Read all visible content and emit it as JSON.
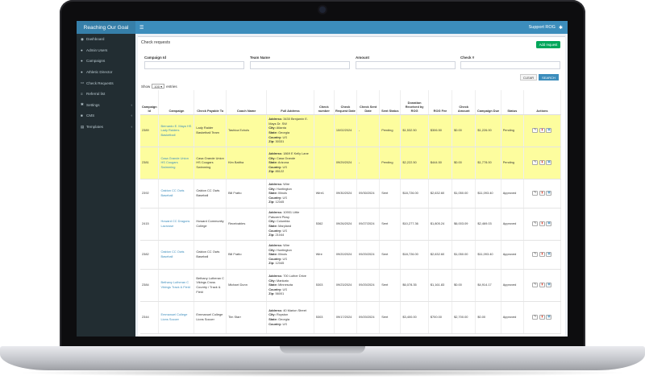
{
  "app": {
    "brand": "Reaching Our Goal",
    "support_label": "Support ROG"
  },
  "sidebar": {
    "items": [
      {
        "label": "Dashboard",
        "icon": "dashboard-icon",
        "glyph": "◉",
        "chevron": false
      },
      {
        "label": "Admin Users",
        "icon": "user-icon",
        "glyph": "●",
        "chevron": false
      },
      {
        "label": "Campaigns",
        "icon": "users-icon",
        "glyph": "●",
        "chevron": false
      },
      {
        "label": "Athletic Director",
        "icon": "user-icon",
        "glyph": "●",
        "chevron": false
      },
      {
        "label": "Check Requests",
        "icon": "money-icon",
        "glyph": "▭",
        "chevron": false
      },
      {
        "label": "Referral list",
        "icon": "list-icon",
        "glyph": "≡",
        "chevron": false
      },
      {
        "label": "Settings",
        "icon": "gear-icon",
        "glyph": "✱",
        "chevron": true
      },
      {
        "label": "CMS",
        "icon": "cms-icon",
        "glyph": "■",
        "chevron": true
      },
      {
        "label": "Templates",
        "icon": "template-icon",
        "glyph": "▤",
        "chevron": true
      }
    ]
  },
  "page": {
    "title": "Check requests",
    "add_button": "Add request",
    "filters": {
      "campaign_id": "Campaign Id",
      "team_name": "Team Name",
      "amount": "Amount",
      "check_no": "Check #"
    },
    "clear_button": "CLEAR",
    "search_button": "SEARCH",
    "show_label": "Show",
    "show_value": "100",
    "entries_label": "entries"
  },
  "table": {
    "headers": [
      "Campaign Id",
      "Campaign",
      "Check Payable To",
      "Coach Name",
      "Full Address",
      "Check number",
      "Check Request Date",
      "Check Sent Date",
      "Sent Status",
      "Donation Received by ROG",
      "ROG Fee",
      "Check Amount",
      "Campaign Due",
      "Status",
      "Actions"
    ],
    "rows": [
      {
        "highlight": true,
        "id": "2389",
        "campaign": "Bernardo E. Maya HS Lady Raiders Basketball",
        "payable": "Lady Raider Basketball Team",
        "coach": "Tashica Echols",
        "address": [
          [
            "Address:",
            "3430 Benjamin E. Mays Dr. SW"
          ],
          [
            "City:",
            "Atlanta"
          ],
          [
            "State:",
            "Georgia"
          ],
          [
            "Country:",
            "US"
          ],
          [
            "Zip:",
            "30331"
          ]
        ],
        "check_no": "",
        "req_date": "10/02/2024",
        "sent_date": "-",
        "sent_status": "Pending",
        "donation": "$1,532.50",
        "fee": "$306.50",
        "amount": "$0.00",
        "due": "$1,226.00",
        "status": "Pending"
      },
      {
        "highlight": true,
        "id": "2381",
        "campaign": "Casa Grande Union HS Cougars Swimming",
        "payable": "Casa Grande Union HS Cougars Swimming",
        "coach": "Kim Battha",
        "address": [
          [
            "Address:",
            "1869 E Kelly Lane"
          ],
          [
            "City:",
            "Casa Grande"
          ],
          [
            "State:",
            "Arizona"
          ],
          [
            "Country:",
            "US"
          ],
          [
            "Zip:",
            "85122"
          ]
        ],
        "check_no": "",
        "req_date": "09/29/2024",
        "sent_date": "-",
        "sent_status": "Pending",
        "donation": "$2,222.50",
        "fee": "$444.50",
        "amount": "$0.00",
        "due": "$1,778.00",
        "status": "Pending"
      },
      {
        "highlight": false,
        "id": "2392",
        "campaign": "Oakton CC Owls Baseball",
        "payable": "Oakton CC Owls Baseball",
        "coach": "Bill Fratto",
        "address": [
          [
            "Address:",
            "Wire"
          ],
          [
            "City:",
            "Huntington"
          ],
          [
            "State:",
            "Illinois"
          ],
          [
            "Country:",
            "US"
          ],
          [
            "Zip:",
            "12345"
          ]
        ],
        "check_no": "Wire1",
        "req_date": "09/30/2024",
        "sent_date": "09/30/2024",
        "sent_status": "Sent",
        "donation": "$18,726.00",
        "fee": "$2,632.60",
        "amount": "$1,050.00",
        "due": "$11,093.40",
        "status": "Approved"
      },
      {
        "highlight": false,
        "id": "2415",
        "campaign": "Howard CC Dragons Lacrosse",
        "payable": "Howard Community College",
        "coach": "Receivables",
        "address": [
          [
            "Address:",
            "10901 Little Patuxent Pkwy"
          ],
          [
            "City:",
            "Columbia"
          ],
          [
            "State:",
            "Maryland"
          ],
          [
            "Country:",
            "US"
          ],
          [
            "Zip:",
            "21044"
          ]
        ],
        "check_no": "5362",
        "req_date": "09/26/2024",
        "sent_date": "09/27/2024",
        "sent_status": "Sent",
        "donation": "$10,277.36",
        "fee": "$1,805.24",
        "amount": "$6,003.09",
        "due": "$2,469.03",
        "status": "Approved"
      },
      {
        "highlight": false,
        "id": "2382",
        "campaign": "Oakton CC Owls Baseball",
        "payable": "Oakton CC Owls Baseball",
        "coach": "Bill Fratto",
        "address": [
          [
            "Address:",
            "Wire"
          ],
          [
            "City:",
            "Huntington"
          ],
          [
            "State:",
            "Illinois"
          ],
          [
            "Country:",
            "US"
          ],
          [
            "Zip:",
            "12345"
          ]
        ],
        "check_no": "Wire",
        "req_date": "09/20/2024",
        "sent_date": "09/20/2024",
        "sent_status": "Sent",
        "donation": "$18,726.00",
        "fee": "$2,632.60",
        "amount": "$1,050.00",
        "due": "$11,093.40",
        "status": "Approved"
      },
      {
        "highlight": false,
        "id": "2384",
        "campaign": "Bethany Lutheran C Vikings Track & Field",
        "payable": "Bethany Lutheran C Vikings Cross Country / Track & Field",
        "coach": "Michael Dunn",
        "address": [
          [
            "Address:",
            "700 Luther Drive"
          ],
          [
            "City:",
            "Mankato"
          ],
          [
            "State:",
            "Minnesota"
          ],
          [
            "Country:",
            "US"
          ],
          [
            "Zip:",
            "56001"
          ]
        ],
        "check_no": "5303",
        "req_date": "09/23/2024",
        "sent_date": "09/20/2024",
        "sent_status": "Sent",
        "donation": "$6,078.35",
        "fee": "$1,161.83",
        "amount": "$0.00",
        "due": "$4,914.17",
        "status": "Approved"
      },
      {
        "highlight": false,
        "id": "2344",
        "campaign": "Emmanuel College Lions Soccer",
        "payable": "Emmanuel College Lions Soccer",
        "coach": "Tim Starr",
        "address": [
          [
            "Address:",
            "40 Marion Street"
          ],
          [
            "City:",
            "Royston"
          ],
          [
            "State:",
            "Georgia"
          ],
          [
            "Country:",
            "US"
          ]
        ],
        "check_no": "5303",
        "req_date": "09/17/2024",
        "sent_date": "09/20/2024",
        "sent_status": "Sent",
        "donation": "$3,400.00",
        "fee": "$700.00",
        "amount": "$2,700.00",
        "due": "$0.00",
        "status": "Approved"
      }
    ]
  }
}
